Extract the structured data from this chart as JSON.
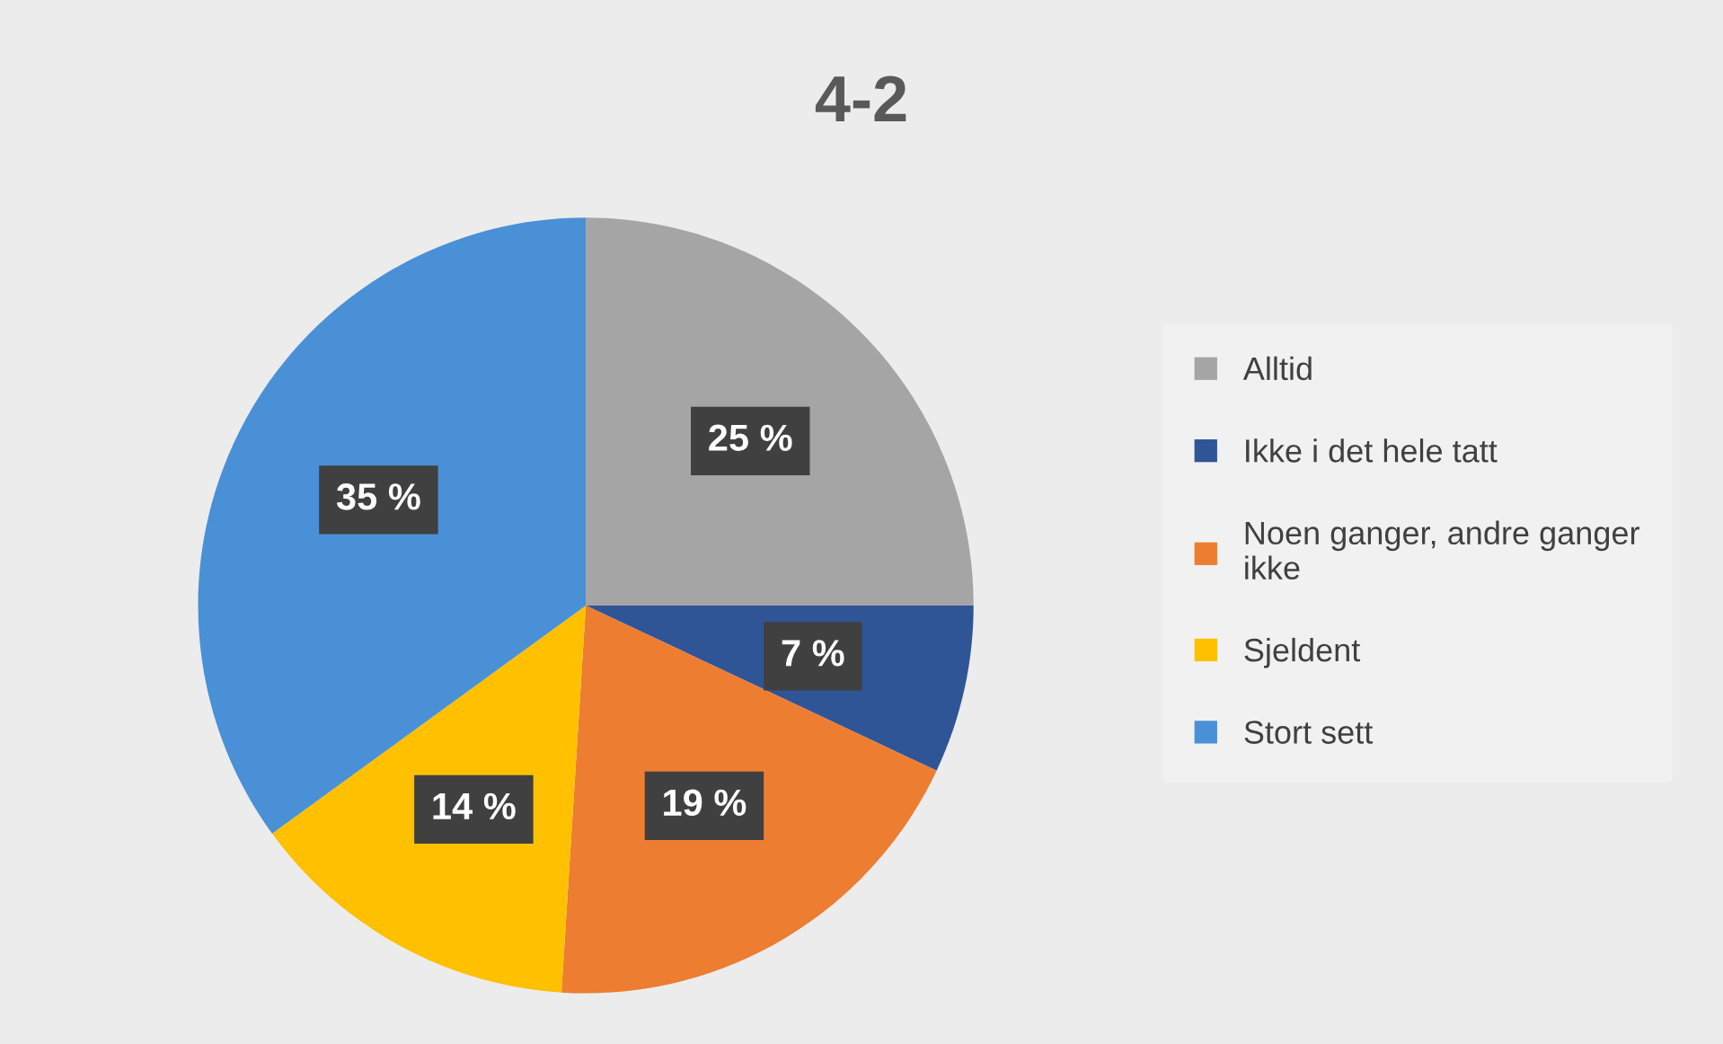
{
  "chart_data": {
    "type": "pie",
    "title": "4-2",
    "categories": [
      "Alltid",
      "Ikke i det hele tatt",
      "Noen ganger, andre ganger ikke",
      "Sjeldent",
      "Stort sett"
    ],
    "values": [
      25,
      7,
      19,
      14,
      35
    ],
    "colors": [
      "#a5a5a5",
      "#2f5597",
      "#ed7d31",
      "#ffc000",
      "#4a90d6"
    ],
    "value_labels": [
      "25 %",
      "7 %",
      "19 %",
      "14 %",
      "35 %"
    ],
    "legend": "right"
  }
}
